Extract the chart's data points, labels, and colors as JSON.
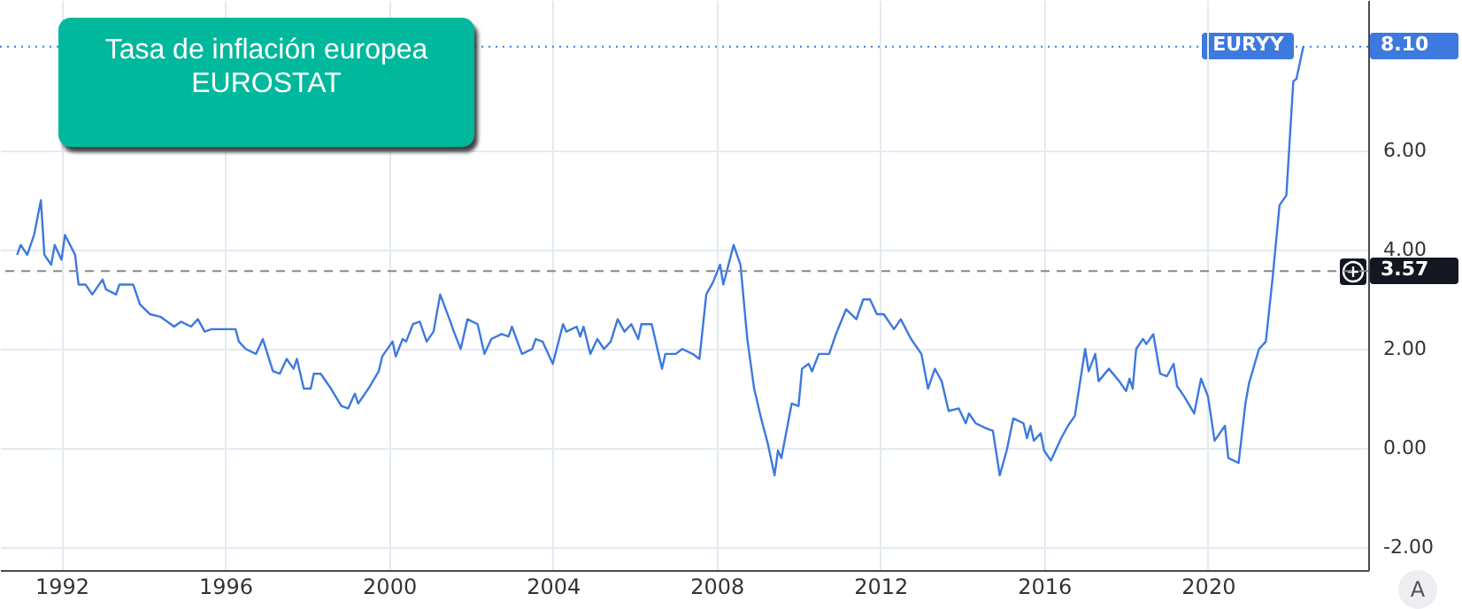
{
  "chart_data": {
    "type": "line",
    "title": "Tasa de inflación europea",
    "subtitle": "EUROSTAT",
    "x": [
      "1990-12",
      "1991-01",
      "1991-03",
      "1991-05",
      "1991-07",
      "1991-08",
      "1991-10",
      "1991-11",
      "1992-01",
      "1992-02",
      "1992-05",
      "1992-06",
      "1992-08",
      "1992-10",
      "1993-01",
      "1993-02",
      "1993-05",
      "1993-06",
      "1993-10",
      "1993-12",
      "1994-03",
      "1994-06",
      "1994-10",
      "1994-12",
      "1995-03",
      "1995-05",
      "1995-07",
      "1995-09",
      "1996-04",
      "1996-05",
      "1996-07",
      "1996-10",
      "1996-12",
      "1997-03",
      "1997-05",
      "1997-07",
      "1997-09",
      "1997-10",
      "1997-12",
      "1998-02",
      "1998-03",
      "1998-05",
      "1998-08",
      "1998-11",
      "1999-01",
      "1999-03",
      "1999-04",
      "1999-07",
      "1999-10",
      "1999-11",
      "2000-02",
      "2000-03",
      "2000-05",
      "2000-06",
      "2000-08",
      "2000-10",
      "2000-12",
      "2001-02",
      "2001-04",
      "2001-07",
      "2001-08",
      "2001-10",
      "2001-12",
      "2002-03",
      "2002-05",
      "2002-07",
      "2002-10",
      "2002-12",
      "2003-01",
      "2003-04",
      "2003-07",
      "2003-08",
      "2003-10",
      "2004-01",
      "2004-04",
      "2004-05",
      "2004-08",
      "2004-09",
      "2004-10",
      "2004-12",
      "2005-02",
      "2005-04",
      "2005-06",
      "2005-08",
      "2005-10",
      "2005-12",
      "2006-02",
      "2006-03",
      "2006-06",
      "2006-09",
      "2006-10",
      "2007-01",
      "2007-03",
      "2007-06",
      "2007-08",
      "2007-10",
      "2007-12",
      "2008-02",
      "2008-03",
      "2008-06",
      "2008-08",
      "2008-10",
      "2008-12",
      "2009-02",
      "2009-04",
      "2009-06",
      "2009-07",
      "2009-08",
      "2009-11",
      "2010-01",
      "2010-02",
      "2010-04",
      "2010-05",
      "2010-07",
      "2010-10",
      "2010-12",
      "2011-03",
      "2011-06",
      "2011-08",
      "2011-10",
      "2011-12",
      "2012-02",
      "2012-05",
      "2012-07",
      "2012-10",
      "2013-01",
      "2013-03",
      "2013-05",
      "2013-07",
      "2013-09",
      "2013-12",
      "2014-02",
      "2014-03",
      "2014-05",
      "2014-08",
      "2014-10",
      "2014-12",
      "2015-02",
      "2015-04",
      "2015-07",
      "2015-08",
      "2015-09",
      "2015-10",
      "2015-12",
      "2016-01",
      "2016-03",
      "2016-06",
      "2016-08",
      "2016-10",
      "2017-01",
      "2017-02",
      "2017-04",
      "2017-05",
      "2017-08",
      "2017-11",
      "2018-01",
      "2018-02",
      "2018-03",
      "2018-04",
      "2018-06",
      "2018-07",
      "2018-09",
      "2018-11",
      "2019-01",
      "2019-03",
      "2019-04",
      "2019-06",
      "2019-09",
      "2019-11",
      "2020-01",
      "2020-03",
      "2020-06",
      "2020-07",
      "2020-10",
      "2020-12",
      "2021-01",
      "2021-04",
      "2021-06",
      "2021-08",
      "2021-10",
      "2021-12",
      "2022-02",
      "2022-03",
      "2022-05"
    ],
    "series": [
      {
        "name": "EURYY",
        "color": "#3d79de",
        "values": [
          3.9,
          4.1,
          3.9,
          4.3,
          5.0,
          3.9,
          3.7,
          4.1,
          3.8,
          4.3,
          3.9,
          3.3,
          3.3,
          3.1,
          3.4,
          3.2,
          3.1,
          3.3,
          3.3,
          2.9,
          2.7,
          2.65,
          2.45,
          2.55,
          2.45,
          2.6,
          2.35,
          2.4,
          2.4,
          2.15,
          2.0,
          1.9,
          2.2,
          1.55,
          1.5,
          1.8,
          1.6,
          1.8,
          1.2,
          1.2,
          1.5,
          1.5,
          1.2,
          0.85,
          0.8,
          1.1,
          0.9,
          1.2,
          1.55,
          1.85,
          2.15,
          1.85,
          2.2,
          2.15,
          2.5,
          2.55,
          2.15,
          2.35,
          3.1,
          2.55,
          2.35,
          2.0,
          2.6,
          2.5,
          1.9,
          2.2,
          2.3,
          2.25,
          2.45,
          1.9,
          2.0,
          2.2,
          2.15,
          1.7,
          2.5,
          2.35,
          2.45,
          2.25,
          2.45,
          1.9,
          2.2,
          2.0,
          2.15,
          2.6,
          2.35,
          2.5,
          2.2,
          2.5,
          2.5,
          1.6,
          1.9,
          1.9,
          2.0,
          1.9,
          1.8,
          3.1,
          3.35,
          3.7,
          3.3,
          4.1,
          3.7,
          2.2,
          1.2,
          0.6,
          0.1,
          -0.55,
          -0.05,
          -0.2,
          0.9,
          0.85,
          1.6,
          1.7,
          1.55,
          1.9,
          1.9,
          2.3,
          2.8,
          2.6,
          3.0,
          3.0,
          2.7,
          2.7,
          2.4,
          2.6,
          2.2,
          1.9,
          1.2,
          1.6,
          1.35,
          0.75,
          0.8,
          0.5,
          0.7,
          0.5,
          0.4,
          0.35,
          -0.55,
          -0.05,
          0.6,
          0.5,
          0.2,
          0.45,
          0.15,
          0.3,
          -0.05,
          -0.25,
          0.2,
          0.45,
          0.65,
          2.0,
          1.55,
          1.9,
          1.35,
          1.6,
          1.35,
          1.15,
          1.4,
          1.2,
          2.0,
          2.2,
          2.1,
          2.3,
          1.5,
          1.45,
          1.7,
          1.25,
          1.05,
          0.7,
          1.4,
          1.05,
          0.15,
          0.45,
          -0.2,
          -0.3,
          0.9,
          1.3,
          2.0,
          2.15,
          3.45,
          4.9,
          5.1,
          7.4,
          7.45,
          8.1
        ]
      }
    ],
    "xlim": [
      "1990-07",
      "2023-12"
    ],
    "xticks": [
      "1992",
      "1996",
      "2000",
      "2004",
      "2008",
      "2012",
      "2016",
      "2020"
    ],
    "ylim": [
      -2.46,
      9.04
    ],
    "yticks": [
      {
        "value": -2,
        "label": "-2.00"
      },
      {
        "value": 0,
        "label": "0.00"
      },
      {
        "value": 2,
        "label": "2.00"
      },
      {
        "value": 4,
        "label": "4.00"
      },
      {
        "value": 6,
        "label": "6.00"
      }
    ],
    "ref_lines": [
      {
        "axis": "y",
        "value": 8.1,
        "label": "8.10",
        "color": "#3d79de",
        "line_style": "dotted"
      },
      {
        "axis": "y",
        "value": 3.57,
        "label": "3.57",
        "color": "#888888",
        "line_style": "dashed"
      }
    ],
    "grid": true,
    "annotations": [
      "A"
    ]
  }
}
